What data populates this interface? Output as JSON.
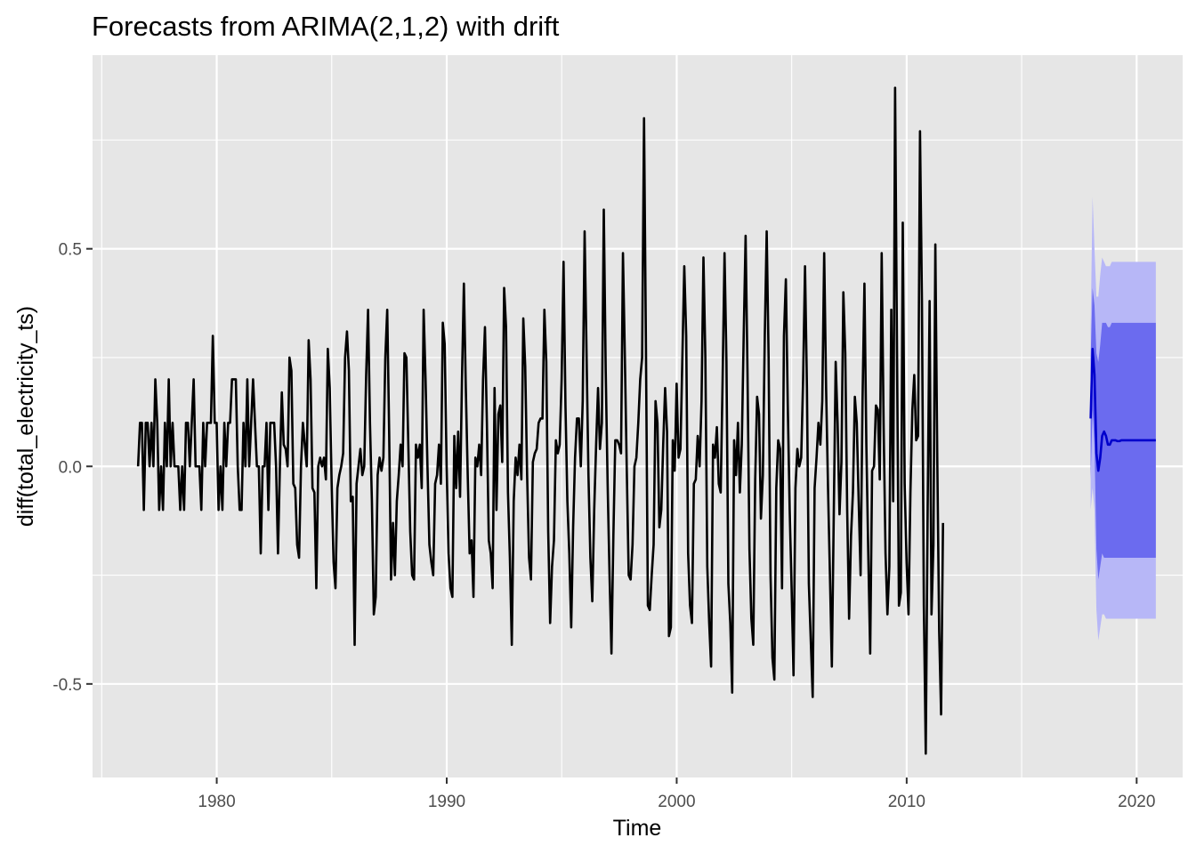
{
  "chart_data": {
    "type": "line",
    "title": "Forecasts from ARIMA(2,1,2) with drift",
    "xlabel": "Time",
    "ylabel": "diff(total_electricity_ts)",
    "xlim": [
      1974.6,
      2022.0
    ],
    "ylim": [
      -0.715,
      0.945
    ],
    "x_ticks": [
      1980,
      1990,
      2000,
      2010,
      2020
    ],
    "x_tick_labels": [
      "1980",
      "1990",
      "2000",
      "2010",
      "2020"
    ],
    "y_ticks": [
      -0.5,
      0.0,
      0.5
    ],
    "y_tick_labels": [
      "-0.5",
      "0.0",
      "0.5"
    ],
    "grid": true,
    "legend": "none",
    "colors": {
      "panel": "#e6e6e6",
      "grid": "#ffffff",
      "history": "#000000",
      "forecast": "#0000cc",
      "band80": "#6b6bef",
      "band95": "#b7b7f7"
    },
    "history": {
      "name": "",
      "start": 1976.58,
      "step": 0.0833333,
      "values": [
        0.0,
        0.1,
        0.1,
        -0.1,
        0.1,
        0.1,
        0.0,
        0.1,
        0.0,
        0.2,
        0.1,
        -0.1,
        0.0,
        -0.1,
        0.1,
        0.0,
        0.2,
        0.0,
        0.1,
        0.0,
        0.0,
        0.0,
        -0.1,
        0.0,
        -0.1,
        0.1,
        0.1,
        0.0,
        0.1,
        0.2,
        0.0,
        0.0,
        0.0,
        -0.1,
        0.1,
        0.0,
        0.1,
        0.1,
        0.1,
        0.3,
        0.1,
        0.1,
        -0.1,
        0.0,
        -0.1,
        0.1,
        0.0,
        0.1,
        0.1,
        0.2,
        0.2,
        0.2,
        0.0,
        -0.1,
        -0.1,
        0.1,
        0.0,
        0.2,
        0.0,
        0.1,
        0.2,
        0.1,
        0.0,
        0.0,
        -0.2,
        0.0,
        0.0,
        0.1,
        -0.1,
        0.1,
        0.1,
        0.1,
        0.0,
        -0.2,
        0.0,
        0.17,
        0.05,
        0.04,
        0.0,
        0.25,
        0.22,
        -0.04,
        -0.05,
        -0.18,
        -0.21,
        0.0,
        0.1,
        0.05,
        0.0,
        0.29,
        0.2,
        -0.05,
        -0.06,
        -0.28,
        0.0,
        0.02,
        0.0,
        0.02,
        -0.03,
        0.27,
        0.18,
        -0.04,
        -0.22,
        -0.28,
        -0.05,
        -0.02,
        0.0,
        0.03,
        0.25,
        0.31,
        0.22,
        -0.08,
        -0.07,
        -0.41,
        -0.04,
        0.0,
        0.04,
        -0.02,
        0.0,
        0.21,
        0.36,
        0.1,
        -0.08,
        -0.34,
        -0.3,
        -0.02,
        0.02,
        -0.01,
        0.02,
        0.25,
        0.36,
        0.08,
        -0.26,
        -0.13,
        -0.25,
        -0.08,
        -0.02,
        0.05,
        0.0,
        0.26,
        0.25,
        0.05,
        -0.15,
        -0.25,
        -0.26,
        0.05,
        0.02,
        0.05,
        -0.05,
        0.36,
        0.2,
        0.0,
        -0.18,
        -0.22,
        -0.25,
        -0.04,
        -0.02,
        0.05,
        -0.04,
        0.33,
        0.28,
        0.0,
        -0.2,
        -0.28,
        -0.3,
        0.07,
        -0.05,
        0.08,
        -0.07,
        0.2,
        0.42,
        0.18,
        -0.02,
        -0.2,
        -0.17,
        -0.3,
        0.02,
        0.0,
        0.05,
        -0.02,
        0.2,
        0.32,
        0.1,
        -0.17,
        -0.2,
        -0.28,
        0.18,
        -0.1,
        0.12,
        0.14,
        0.01,
        0.41,
        0.32,
        -0.06,
        -0.21,
        -0.41,
        -0.08,
        0.02,
        -0.02,
        0.05,
        -0.03,
        0.34,
        0.23,
        -0.02,
        -0.21,
        -0.26,
        0.01,
        0.03,
        0.04,
        0.1,
        0.11,
        0.11,
        0.36,
        0.24,
        -0.15,
        -0.36,
        -0.23,
        -0.17,
        0.06,
        0.03,
        0.05,
        0.2,
        0.47,
        0.14,
        -0.08,
        -0.2,
        -0.37,
        -0.14,
        0.02,
        0.11,
        0.11,
        0.0,
        0.15,
        0.54,
        0.26,
        -0.02,
        -0.21,
        -0.31,
        -0.1,
        0.05,
        0.18,
        0.04,
        0.1,
        0.59,
        0.22,
        -0.04,
        -0.25,
        -0.43,
        -0.16,
        0.06,
        0.06,
        0.05,
        0.03,
        0.49,
        0.25,
        -0.01,
        -0.25,
        -0.26,
        -0.18,
        0.0,
        0.02,
        0.1,
        0.2,
        0.25,
        0.8,
        0.27,
        -0.32,
        -0.33,
        -0.25,
        -0.18,
        0.15,
        0.1,
        -0.14,
        -0.1,
        0.05,
        0.18,
        0.08,
        -0.39,
        -0.37,
        0.06,
        -0.01,
        0.19,
        0.02,
        0.04,
        0.25,
        0.46,
        0.3,
        -0.2,
        -0.32,
        -0.36,
        -0.04,
        -0.03,
        0.07,
        0.0,
        0.15,
        0.48,
        0.25,
        -0.23,
        -0.36,
        -0.46,
        0.05,
        0.02,
        0.09,
        -0.04,
        -0.06,
        0.2,
        0.49,
        0.24,
        -0.27,
        -0.36,
        -0.52,
        0.06,
        -0.02,
        0.1,
        -0.06,
        0.05,
        0.3,
        0.53,
        0.21,
        -0.19,
        -0.35,
        -0.41,
        -0.03,
        0.16,
        0.12,
        -0.12,
        -0.02,
        0.3,
        0.54,
        0.25,
        -0.25,
        -0.44,
        -0.49,
        -0.05,
        0.06,
        0.04,
        -0.28,
        0.3,
        0.43,
        0.14,
        -0.1,
        -0.28,
        -0.48,
        -0.05,
        0.04,
        0.0,
        0.02,
        0.2,
        0.46,
        0.18,
        -0.27,
        -0.4,
        -0.53,
        -0.05,
        0.02,
        0.1,
        0.05,
        0.15,
        0.49,
        0.18,
        -0.05,
        -0.25,
        -0.46,
        -0.11,
        0.24,
        0.1,
        -0.11,
        0.01,
        0.4,
        0.26,
        -0.1,
        -0.35,
        -0.16,
        -0.06,
        0.16,
        0.1,
        -0.08,
        -0.25,
        0.15,
        0.42,
        0.05,
        -0.2,
        -0.43,
        -0.01,
        0.0,
        0.14,
        0.13,
        -0.03,
        0.49,
        0.1,
        -0.2,
        -0.34,
        -0.23,
        0.36,
        -0.08,
        0.87,
        0.26,
        -0.32,
        -0.29,
        0.56,
        -0.04,
        -0.22,
        -0.34,
        -0.06,
        0.13,
        0.21,
        0.06,
        0.07,
        0.77,
        0.38,
        -0.32,
        -0.66,
        -0.09,
        0.38,
        -0.34,
        -0.18,
        0.51,
        0.02,
        -0.38,
        -0.57,
        -0.13
      ]
    },
    "forecast": {
      "name": "",
      "start": 2018.0,
      "step": 0.0833333,
      "mean": [
        0.11,
        0.27,
        0.21,
        0.03,
        -0.01,
        0.02,
        0.07,
        0.08,
        0.07,
        0.05,
        0.05,
        0.06,
        0.06,
        0.06,
        0.058,
        0.058,
        0.06,
        0.06,
        0.06,
        0.06,
        0.06,
        0.06,
        0.06,
        0.06,
        0.06,
        0.06,
        0.06,
        0.06,
        0.06,
        0.06,
        0.06,
        0.06,
        0.06,
        0.06,
        0.06
      ],
      "lower80": [
        -0.03,
        0.13,
        0.05,
        -0.19,
        -0.26,
        -0.23,
        -0.2,
        -0.21,
        -0.21,
        -0.21,
        -0.21,
        -0.21,
        -0.21,
        -0.21,
        -0.21,
        -0.21,
        -0.21,
        -0.21,
        -0.21,
        -0.21,
        -0.21,
        -0.21,
        -0.21,
        -0.21,
        -0.21,
        -0.21,
        -0.21,
        -0.21,
        -0.21,
        -0.21,
        -0.21,
        -0.21,
        -0.21,
        -0.21,
        -0.21
      ],
      "upper80": [
        0.25,
        0.41,
        0.37,
        0.26,
        0.24,
        0.28,
        0.33,
        0.33,
        0.33,
        0.32,
        0.32,
        0.33,
        0.33,
        0.33,
        0.33,
        0.33,
        0.33,
        0.33,
        0.33,
        0.33,
        0.33,
        0.33,
        0.33,
        0.33,
        0.33,
        0.33,
        0.33,
        0.33,
        0.33,
        0.33,
        0.33,
        0.33,
        0.33,
        0.33,
        0.33
      ],
      "lower95": [
        -0.1,
        -0.05,
        -0.1,
        -0.33,
        -0.4,
        -0.37,
        -0.34,
        -0.34,
        -0.35,
        -0.35,
        -0.35,
        -0.35,
        -0.35,
        -0.35,
        -0.35,
        -0.35,
        -0.35,
        -0.35,
        -0.35,
        -0.35,
        -0.35,
        -0.35,
        -0.35,
        -0.35,
        -0.35,
        -0.35,
        -0.35,
        -0.35,
        -0.35,
        -0.35,
        -0.35,
        -0.35,
        -0.35,
        -0.35,
        -0.35
      ],
      "upper95": [
        0.32,
        0.62,
        0.5,
        0.39,
        0.39,
        0.44,
        0.48,
        0.47,
        0.46,
        0.46,
        0.46,
        0.47,
        0.47,
        0.47,
        0.47,
        0.47,
        0.47,
        0.47,
        0.47,
        0.47,
        0.47,
        0.47,
        0.47,
        0.47,
        0.47,
        0.47,
        0.47,
        0.47,
        0.47,
        0.47,
        0.47,
        0.47,
        0.47,
        0.47,
        0.47
      ]
    }
  }
}
